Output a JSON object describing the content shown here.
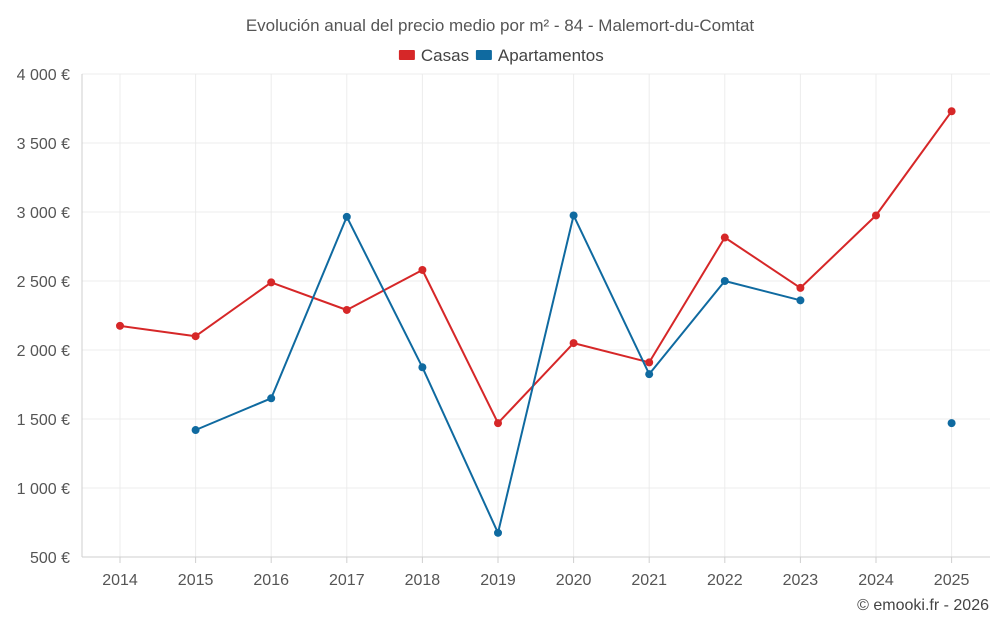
{
  "chart_data": {
    "type": "line",
    "title": "Evolución anual del precio medio por m² - 84 - Malemort-du-Comtat",
    "categories": [
      "2014",
      "2015",
      "2016",
      "2017",
      "2018",
      "2019",
      "2020",
      "2021",
      "2022",
      "2023",
      "2024",
      "2025"
    ],
    "ylim": [
      500,
      4000
    ],
    "yticks": [
      500,
      1000,
      1500,
      2000,
      2500,
      3000,
      3500,
      4000
    ],
    "ytick_labels": [
      "500 €",
      "1 000 €",
      "1 500 €",
      "2 000 €",
      "2 500 €",
      "3 000 €",
      "3 500 €",
      "4 000 €"
    ],
    "grid": true,
    "legend_position": "top-center",
    "series": [
      {
        "name": "Casas",
        "color": "#d62728",
        "values": [
          2175,
          2100,
          2490,
          2290,
          2580,
          1470,
          2050,
          1910,
          2815,
          2450,
          2975,
          3730
        ]
      },
      {
        "name": "Apartamentos",
        "color": "#0f6aa0",
        "values": [
          null,
          1420,
          1650,
          2965,
          1875,
          675,
          2975,
          1825,
          2500,
          2360,
          null,
          1470
        ]
      }
    ],
    "credit": "© emooki.fr - 2026"
  }
}
